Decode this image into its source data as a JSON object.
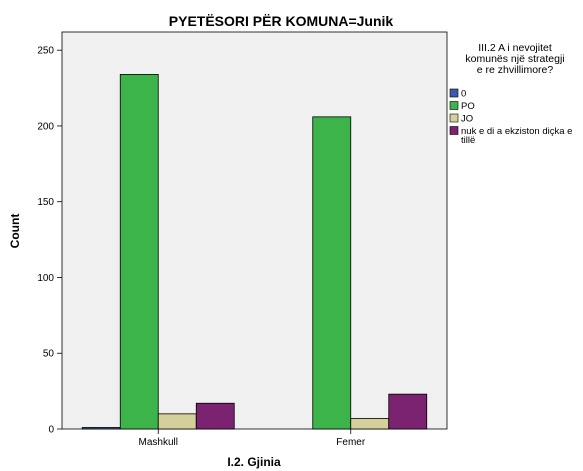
{
  "chart_data": {
    "type": "bar",
    "title": "PYETËSORI PËR KOMUNA=Junik",
    "xlabel": "I.2. Gjinia",
    "ylabel": "Count",
    "categories": [
      "Mashkull",
      "Femer"
    ],
    "ylim": [
      0,
      262
    ],
    "yticks": [
      0,
      50,
      100,
      150,
      200,
      250
    ],
    "grid": false,
    "legend_placement": "right",
    "legend_title": [
      "III.2 A i nevojitet",
      "komunës një strategji",
      "e re zhvillimore?"
    ],
    "series": [
      {
        "name": "0",
        "values": [
          1,
          0
        ],
        "color": "#3e58ac"
      },
      {
        "name": "PO",
        "values": [
          234,
          206
        ],
        "color": "#3cb449"
      },
      {
        "name": "JO",
        "values": [
          10,
          7
        ],
        "color": "#d5cf9c"
      },
      {
        "name": "nuk e di a ekziston diçka e tillë",
        "legend_lines": [
          "nuk e di a ekziston diçka e",
          "tillë"
        ],
        "values": [
          17,
          23
        ],
        "color": "#7b2370"
      }
    ],
    "plot_background": "#f0f0f0"
  }
}
